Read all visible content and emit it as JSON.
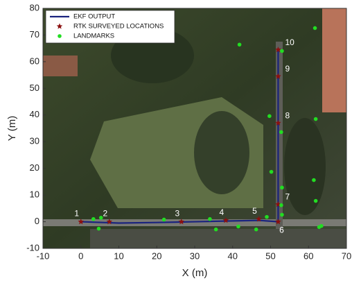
{
  "chart_data": {
    "type": "line",
    "xlabel": "X (m)",
    "ylabel": "Y (m)",
    "xlim": [
      -10,
      70
    ],
    "xticks": [
      -10,
      0,
      10,
      20,
      30,
      40,
      50,
      60,
      70
    ],
    "ylim": [
      -10,
      80
    ],
    "yticks": [
      -10,
      0,
      10,
      20,
      30,
      40,
      50,
      60,
      70,
      80
    ],
    "legend": "upper left",
    "series": [
      {
        "name": "EKF OUTPUT",
        "type": "line",
        "color": "#1a237e",
        "x": [
          0,
          10,
          20,
          30,
          40,
          47,
          52,
          52,
          52,
          52,
          52,
          52
        ],
        "values": [
          0,
          -0.5,
          -0.3,
          0,
          0.3,
          0.5,
          0,
          7,
          20,
          37,
          54,
          65
        ]
      },
      {
        "name": "RTK SURVEYED LOCATIONS",
        "type": "scatter",
        "marker": "star",
        "color": "#8b1010",
        "x": [
          0,
          7.5,
          26.5,
          38.2,
          46.9,
          52,
          52,
          52,
          52,
          52
        ],
        "values": [
          0,
          0,
          0,
          0.5,
          1,
          0,
          6.5,
          37,
          54.5,
          64.5
        ],
        "point_labels": [
          "1",
          "2",
          "3",
          "4",
          "5",
          "6",
          "7",
          "8",
          "9",
          "10"
        ]
      },
      {
        "name": "LANDMARKS",
        "type": "scatter",
        "marker": "circle",
        "color": "#22dd22",
        "x": [
          3.3,
          5.3,
          4.7,
          21.9,
          34,
          35.6,
          41.5,
          46.2,
          49,
          53,
          52.8,
          53,
          50.2,
          52.8,
          49.7,
          41.8,
          53,
          61.7,
          61.9,
          61.4,
          61.9,
          62.8,
          63.4
        ],
        "values": [
          1,
          1.5,
          -2.6,
          0.8,
          1,
          -2.9,
          -1.8,
          -2.9,
          1.8,
          2.6,
          6.2,
          12.8,
          18.7,
          33.6,
          39.6,
          66.4,
          64,
          72.6,
          38.5,
          15.6,
          7.8,
          -2,
          -1.6
        ]
      }
    ]
  }
}
